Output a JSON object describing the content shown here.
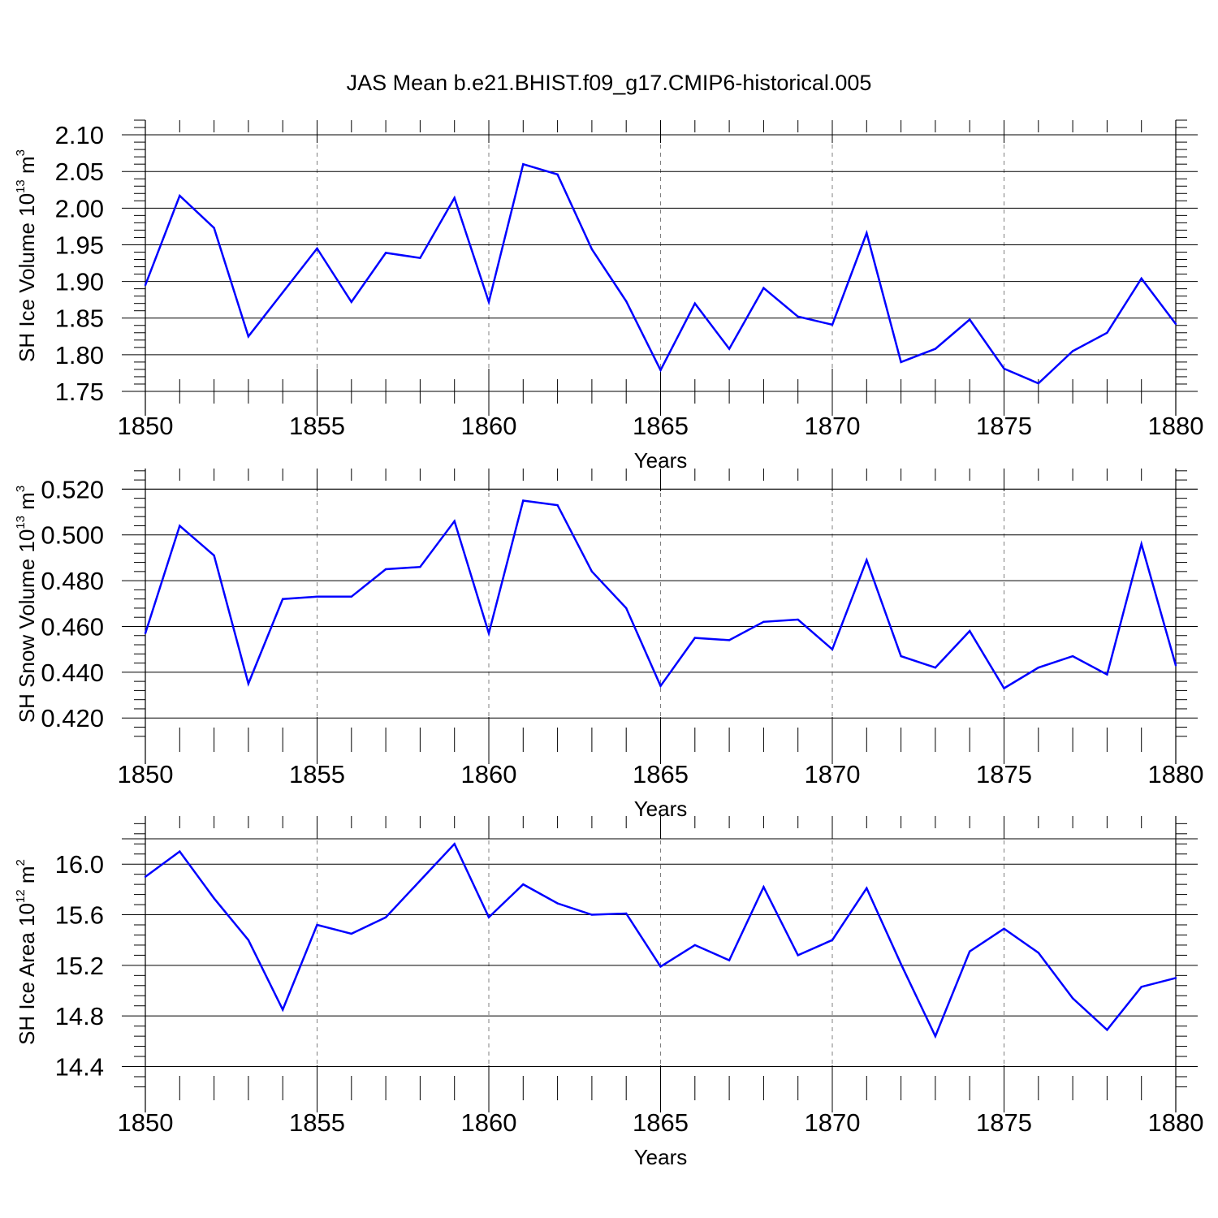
{
  "title": "JAS Mean b.e21.BHIST.f09_g17.CMIP6-historical.005",
  "colors": {
    "series": "#0000ff",
    "axis": "#000000",
    "grid": "#808080"
  },
  "chart_data": [
    {
      "type": "line",
      "name": "ice-volume",
      "ylabel": {
        "main": "SH Ice Volume 10",
        "exp": "13",
        "unit": " m",
        "unit_exp": "3"
      },
      "xlabel": "Years",
      "xlim": [
        1850,
        1880
      ],
      "ylim": [
        1.75,
        2.12
      ],
      "x_ticks": [
        1850,
        1855,
        1860,
        1865,
        1870,
        1875,
        1880
      ],
      "y_ticks": [
        1.75,
        1.8,
        1.85,
        1.9,
        1.95,
        2.0,
        2.05,
        2.1
      ],
      "y_tick_labels": [
        "1.75",
        "1.80",
        "1.85",
        "1.90",
        "1.95",
        "2.00",
        "2.05",
        "2.10"
      ],
      "y_ref": 2.1,
      "x": [
        1850,
        1851,
        1852,
        1853,
        1854,
        1855,
        1856,
        1857,
        1858,
        1859,
        1860,
        1861,
        1862,
        1863,
        1864,
        1865,
        1866,
        1867,
        1868,
        1869,
        1870,
        1871,
        1872,
        1873,
        1874,
        1875,
        1876,
        1877,
        1878,
        1879,
        1880
      ],
      "values": [
        1.895,
        2.017,
        1.973,
        1.825,
        1.885,
        1.945,
        1.872,
        1.939,
        1.932,
        2.014,
        1.872,
        2.06,
        2.046,
        1.944,
        1.873,
        1.779,
        1.87,
        1.808,
        1.891,
        1.852,
        1.841,
        1.966,
        1.79,
        1.808,
        1.848,
        1.781,
        1.761,
        1.805,
        1.83,
        1.904,
        1.842
      ]
    },
    {
      "type": "line",
      "name": "snow-volume",
      "ylabel": {
        "main": "SH Snow Volume 10",
        "exp": "13",
        "unit": " m",
        "unit_exp": "3"
      },
      "xlabel": "Years",
      "xlim": [
        1850,
        1880
      ],
      "ylim": [
        0.4105,
        0.529
      ],
      "x_ticks": [
        1850,
        1855,
        1860,
        1865,
        1870,
        1875,
        1880
      ],
      "y_ticks": [
        0.42,
        0.44,
        0.46,
        0.48,
        0.5,
        0.52
      ],
      "y_tick_labels": [
        "0.420",
        "0.440",
        "0.460",
        "0.480",
        "0.500",
        "0.520"
      ],
      "y_ref": 0.52,
      "x": [
        1850,
        1851,
        1852,
        1853,
        1854,
        1855,
        1856,
        1857,
        1858,
        1859,
        1860,
        1861,
        1862,
        1863,
        1864,
        1865,
        1866,
        1867,
        1868,
        1869,
        1870,
        1871,
        1872,
        1873,
        1874,
        1875,
        1876,
        1877,
        1878,
        1879,
        1880
      ],
      "values": [
        0.457,
        0.504,
        0.491,
        0.435,
        0.472,
        0.473,
        0.473,
        0.485,
        0.486,
        0.506,
        0.457,
        0.515,
        0.513,
        0.484,
        0.468,
        0.434,
        0.455,
        0.454,
        0.462,
        0.463,
        0.45,
        0.489,
        0.447,
        0.442,
        0.458,
        0.433,
        0.442,
        0.447,
        0.439,
        0.496,
        0.443
      ]
    },
    {
      "type": "line",
      "name": "ice-area",
      "ylabel": {
        "main": "SH Ice Area 10",
        "exp": "12",
        "unit": " m",
        "unit_exp": "2"
      },
      "xlabel": "Years",
      "xlim": [
        1850,
        1880
      ],
      "ylim": [
        14.23,
        16.38
      ],
      "x_ticks": [
        1850,
        1855,
        1860,
        1865,
        1870,
        1875,
        1880
      ],
      "y_ticks": [
        14.4,
        14.8,
        15.2,
        15.6,
        16.0
      ],
      "y_tick_labels": [
        "14.4",
        "14.8",
        "15.2",
        "15.6",
        "16.0"
      ],
      "y_ref": 16.2,
      "x": [
        1850,
        1851,
        1852,
        1853,
        1854,
        1855,
        1856,
        1857,
        1858,
        1859,
        1860,
        1861,
        1862,
        1863,
        1864,
        1865,
        1866,
        1867,
        1868,
        1869,
        1870,
        1871,
        1872,
        1873,
        1874,
        1875,
        1876,
        1877,
        1878,
        1879,
        1880
      ],
      "values": [
        15.9,
        16.1,
        15.73,
        15.4,
        14.85,
        15.52,
        15.45,
        15.58,
        15.87,
        16.16,
        15.58,
        15.84,
        15.69,
        15.6,
        15.61,
        15.19,
        15.36,
        15.24,
        15.82,
        15.28,
        15.4,
        15.81,
        15.21,
        14.64,
        15.31,
        15.49,
        15.3,
        14.94,
        14.69,
        15.03,
        15.1
      ]
    }
  ]
}
